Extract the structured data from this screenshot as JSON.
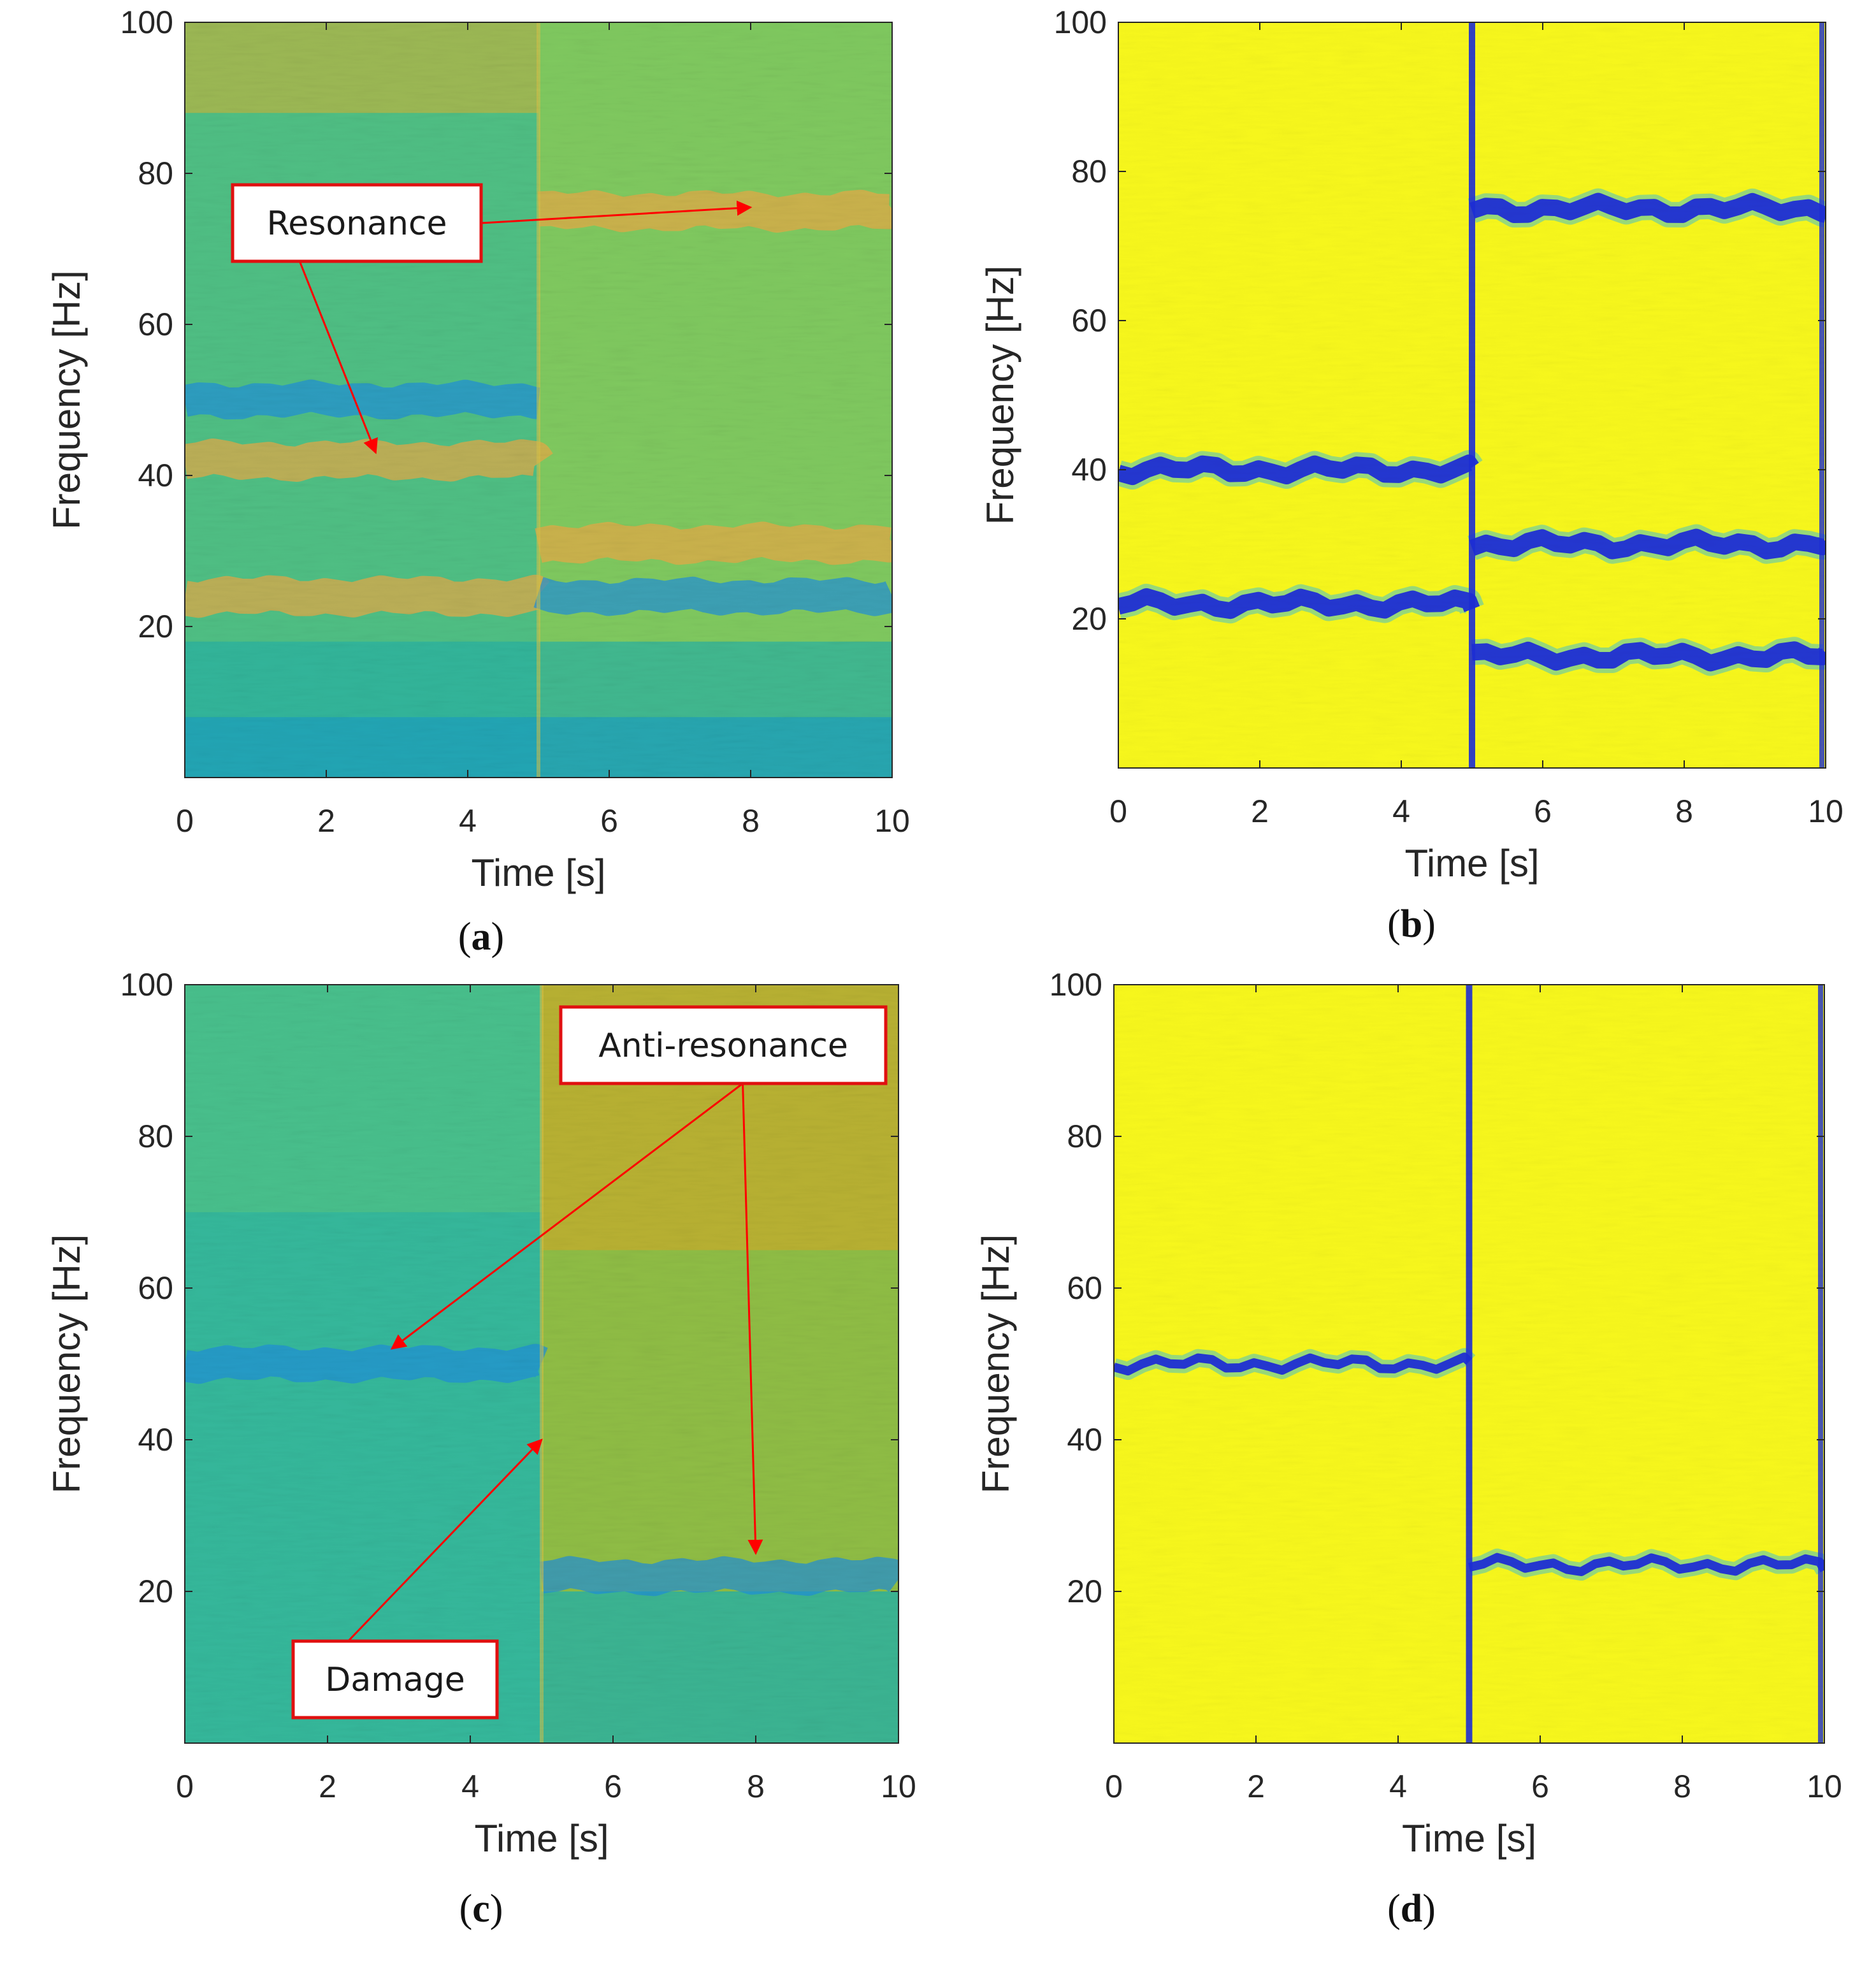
{
  "figure": {
    "panels": [
      {
        "id": "a",
        "caption_letter": "a",
        "caption_open": "(",
        "caption_close": ")",
        "colormap": "parula-mid",
        "annotations": [
          {
            "label": "Resonance",
            "arrows": [
              {
                "t": 8.0,
                "f": 75.5
              },
              {
                "t": 2.7,
                "f": 43
              }
            ]
          }
        ]
      },
      {
        "id": "b",
        "caption_letter": "b",
        "caption_open": "(",
        "caption_close": ")",
        "colormap": "yellow-saturated",
        "annotations": []
      },
      {
        "id": "c",
        "caption_letter": "c",
        "caption_open": "(",
        "caption_close": ")",
        "colormap": "parula-mid",
        "annotations": [
          {
            "label": "Anti-resonance",
            "arrows": [
              {
                "t": 2.9,
                "f": 52
              },
              {
                "t": 8.0,
                "f": 25
              }
            ]
          },
          {
            "label": "Damage",
            "arrows": [
              {
                "t": 5.0,
                "f": 40
              }
            ]
          }
        ]
      },
      {
        "id": "d",
        "caption_letter": "d",
        "caption_open": "(",
        "caption_close": ")",
        "colormap": "yellow-saturated",
        "annotations": []
      }
    ]
  },
  "chart_data": [
    {
      "panel": "a",
      "type": "heatmap",
      "title": "",
      "xlabel": "Time [s]",
      "ylabel": "Frequency [Hz]",
      "xlim": [
        0,
        10
      ],
      "ylim": [
        0,
        100
      ],
      "xticks": [
        0,
        2,
        4,
        6,
        8,
        10
      ],
      "yticks": [
        20,
        40,
        60,
        80,
        100
      ],
      "damage_time": 5.0,
      "bands": [
        {
          "t0": 0,
          "t1": 5,
          "f": 24,
          "kind": "resonance"
        },
        {
          "t0": 0,
          "t1": 5,
          "f": 42,
          "kind": "resonance"
        },
        {
          "t0": 0,
          "t1": 5,
          "f": 50,
          "kind": "anti-resonance"
        },
        {
          "t0": 5,
          "t1": 10,
          "f": 31,
          "kind": "resonance"
        },
        {
          "t0": 5,
          "t1": 10,
          "f": 75,
          "kind": "resonance"
        },
        {
          "t0": 5,
          "t1": 10,
          "f": 24,
          "kind": "anti-resonance"
        }
      ]
    },
    {
      "panel": "b",
      "type": "heatmap",
      "title": "",
      "xlabel": "Time [s]",
      "ylabel": "Frequency [Hz]",
      "xlim": [
        0,
        10
      ],
      "ylim": [
        0,
        100
      ],
      "xticks": [
        0,
        2,
        4,
        6,
        8,
        10
      ],
      "yticks": [
        20,
        40,
        60,
        80,
        100
      ],
      "damage_time": 5.0,
      "bands": [
        {
          "t0": 0,
          "t1": 5,
          "f": 40,
          "kind": "anti-resonance"
        },
        {
          "t0": 0,
          "t1": 5,
          "f": 22,
          "kind": "anti-resonance"
        },
        {
          "t0": 5,
          "t1": 10,
          "f": 75,
          "kind": "anti-resonance"
        },
        {
          "t0": 5,
          "t1": 10,
          "f": 30,
          "kind": "anti-resonance"
        },
        {
          "t0": 5,
          "t1": 10,
          "f": 15,
          "kind": "anti-resonance"
        }
      ]
    },
    {
      "panel": "c",
      "type": "heatmap",
      "title": "",
      "xlabel": "Time [s]",
      "ylabel": "Frequency [Hz]",
      "xlim": [
        0,
        10
      ],
      "ylim": [
        0,
        100
      ],
      "xticks": [
        0,
        2,
        4,
        6,
        8,
        10
      ],
      "yticks": [
        20,
        40,
        60,
        80,
        100
      ],
      "damage_time": 5.0,
      "bands": [
        {
          "t0": 0,
          "t1": 5,
          "f": 50,
          "kind": "anti-resonance"
        },
        {
          "t0": 5,
          "t1": 10,
          "f": 22,
          "kind": "anti-resonance"
        }
      ]
    },
    {
      "panel": "d",
      "type": "heatmap",
      "title": "",
      "xlabel": "Time [s]",
      "ylabel": "Frequency [Hz]",
      "xlim": [
        0,
        10
      ],
      "ylim": [
        0,
        100
      ],
      "xticks": [
        0,
        2,
        4,
        6,
        8,
        10
      ],
      "yticks": [
        20,
        40,
        60,
        80,
        100
      ],
      "damage_time": 5.0,
      "bands": [
        {
          "t0": 0,
          "t1": 5,
          "f": 50,
          "kind": "anti-resonance"
        },
        {
          "t0": 5,
          "t1": 10,
          "f": 23.5,
          "kind": "anti-resonance"
        }
      ]
    }
  ]
}
